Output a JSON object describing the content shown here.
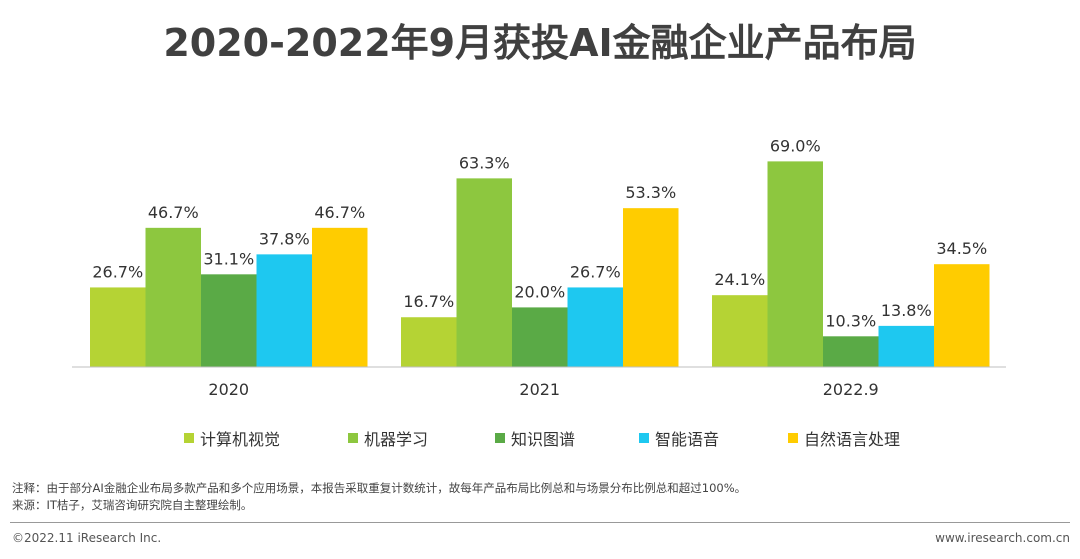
{
  "title": "2020-2022年9月获投AI金融企业产品布局",
  "chart_data": {
    "type": "bar",
    "categories": [
      "2020",
      "2021",
      "2022.9"
    ],
    "series": [
      {
        "name": "计算机视觉",
        "color": "#b5d334",
        "values": [
          26.7,
          16.7,
          24.1
        ],
        "labels": [
          "26.7%",
          "16.7%",
          "24.1%"
        ]
      },
      {
        "name": "机器学习",
        "color": "#8dc73f",
        "values": [
          46.7,
          63.3,
          69.0
        ],
        "labels": [
          "46.7%",
          "63.3%",
          "69.0%"
        ]
      },
      {
        "name": "知识图谱",
        "color": "#5aaa46",
        "values": [
          31.1,
          20.0,
          10.3
        ],
        "labels": [
          "31.1%",
          "20.0%",
          "10.3%"
        ]
      },
      {
        "name": "智能语音",
        "color": "#1ec8f0",
        "values": [
          37.8,
          26.7,
          13.8
        ],
        "labels": [
          "37.8%",
          "26.7%",
          "13.8%"
        ]
      },
      {
        "name": "自然语言处理",
        "color": "#ffcc00",
        "values": [
          46.7,
          53.3,
          34.5
        ],
        "labels": [
          "46.7%",
          "53.3%",
          "34.5%"
        ]
      }
    ],
    "ylim": [
      0,
      100
    ],
    "legend_position": "bottom",
    "grid": false
  },
  "notes": {
    "line1": "注释：由于部分AI金融企业布局多款产品和多个应用场景，本报告采取重复计数统计，故每年产品布局比例总和与场景分布比例总和超过100%。",
    "line2": "来源：IT桔子，艾瑞咨询研究院自主整理绘制。"
  },
  "footer": {
    "left": "©2022.11 iResearch Inc.",
    "right": "www.iresearch.com.cn"
  }
}
